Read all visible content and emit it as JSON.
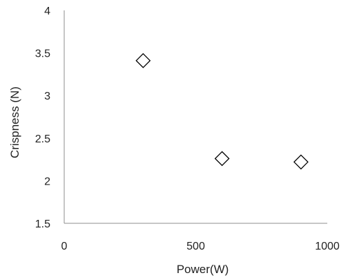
{
  "chart_data": {
    "type": "scatter",
    "title": "",
    "xlabel": "Power(W)",
    "ylabel": "Crispness (N)",
    "xlim": [
      0,
      1000
    ],
    "ylim": [
      1.5,
      4
    ],
    "x_ticks": [
      "0",
      "500",
      "1000"
    ],
    "y_ticks": [
      "1.5",
      "2",
      "2.5",
      "3",
      "3.5",
      "4"
    ],
    "grid": false,
    "legend": "none",
    "marker": "diamond-open",
    "series": [
      {
        "points": [
          {
            "x": 300,
            "y": 3.41
          },
          {
            "x": 600,
            "y": 2.26
          },
          {
            "x": 900,
            "y": 2.22
          }
        ]
      }
    ]
  }
}
